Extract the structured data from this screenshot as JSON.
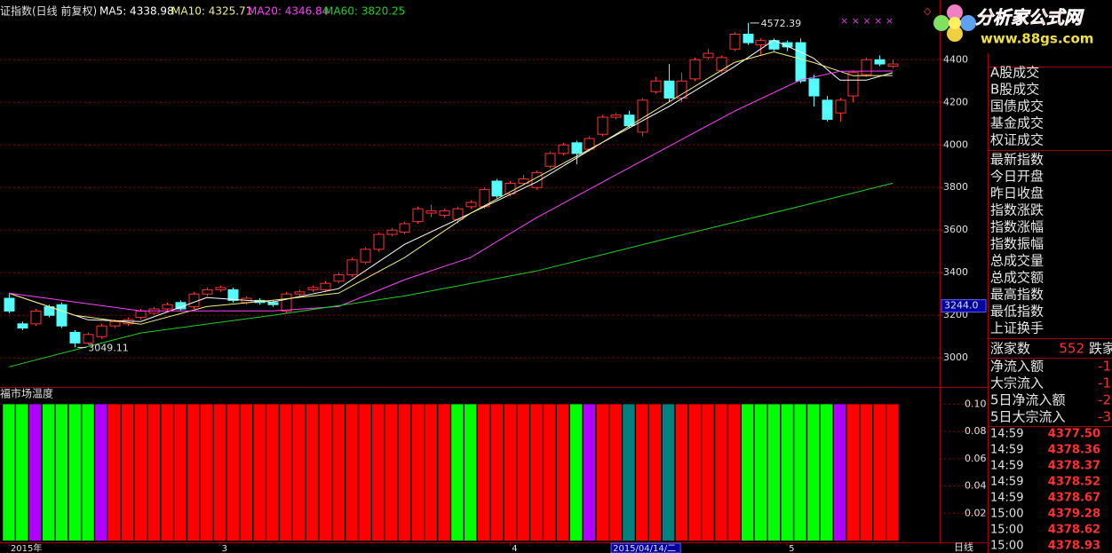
{
  "chart_data": [
    {
      "type": "candlestick",
      "title": "证指数(日线 前复权)",
      "open": [
        3280,
        3160,
        3160,
        3240,
        3250,
        3120,
        3070,
        3100,
        3150,
        3160,
        3190,
        3210,
        3230,
        3260,
        3240,
        3300,
        3320,
        3320,
        3260,
        3270,
        3260,
        3220,
        3300,
        3320,
        3320,
        3360,
        3390,
        3450,
        3510,
        3580,
        3590,
        3640,
        3680,
        3670,
        3650,
        3710,
        3710,
        3830,
        3770,
        3820,
        3800,
        3900,
        3960,
        4010,
        3980,
        4050,
        4130,
        4140,
        4060,
        4250,
        4300,
        4220,
        4310,
        4410,
        4350,
        4450,
        4520,
        4470,
        4490,
        4480,
        4480,
        4310,
        4210,
        4150,
        4230,
        4330,
        4400,
        4370
      ],
      "high": [
        3300,
        3170,
        3230,
        3250,
        3260,
        3130,
        3120,
        3160,
        3180,
        3190,
        3230,
        3240,
        3260,
        3270,
        3310,
        3330,
        3340,
        3330,
        3290,
        3280,
        3270,
        3310,
        3320,
        3340,
        3360,
        3400,
        3470,
        3520,
        3590,
        3610,
        3640,
        3710,
        3720,
        3700,
        3710,
        3740,
        3800,
        3840,
        3830,
        3860,
        3880,
        3970,
        4010,
        4020,
        4040,
        4140,
        4150,
        4160,
        4220,
        4320,
        4380,
        4340,
        4410,
        4450,
        4420,
        4530,
        4572.39,
        4500,
        4500,
        4490,
        4500,
        4330,
        4230,
        4220,
        4350,
        4410,
        4420,
        4400
      ],
      "low": [
        3210,
        3130,
        3150,
        3190,
        3140,
        3049.11,
        3060,
        3090,
        3140,
        3150,
        3180,
        3200,
        3220,
        3220,
        3230,
        3290,
        3310,
        3260,
        3250,
        3250,
        3240,
        3210,
        3290,
        3310,
        3310,
        3350,
        3380,
        3440,
        3500,
        3570,
        3580,
        3630,
        3660,
        3660,
        3630,
        3700,
        3700,
        3750,
        3760,
        3810,
        3790,
        3890,
        3950,
        3910,
        3970,
        4040,
        4120,
        4080,
        4040,
        4240,
        4200,
        4200,
        4300,
        4400,
        4340,
        4440,
        4470,
        4420,
        4440,
        4440,
        4290,
        4180,
        4110,
        4110,
        4200,
        4320,
        4370,
        4360
      ],
      "close": [
        3220,
        3140,
        3220,
        3200,
        3150,
        3070,
        3110,
        3150,
        3170,
        3180,
        3220,
        3230,
        3250,
        3230,
        3300,
        3320,
        3330,
        3270,
        3280,
        3260,
        3250,
        3300,
        3310,
        3330,
        3350,
        3390,
        3460,
        3510,
        3580,
        3600,
        3630,
        3700,
        3690,
        3690,
        3700,
        3730,
        3790,
        3760,
        3820,
        3840,
        3870,
        3960,
        4000,
        3960,
        4030,
        4130,
        4140,
        4090,
        4210,
        4300,
        4220,
        4300,
        4400,
        4430,
        4410,
        4520,
        4480,
        4490,
        4450,
        4460,
        4300,
        4230,
        4120,
        4210,
        4340,
        4400,
        4380,
        4380
      ],
      "up_color": "#ff3232",
      "down_color": "#54fcfc",
      "xlim": [
        -0.67,
        70.57
      ],
      "ylim": [
        2880,
        4597
      ],
      "yticks": [
        3000,
        3200,
        3400,
        3600,
        3800,
        4000,
        4200,
        4400
      ],
      "grid": true,
      "xticks": [
        {
          "value": 0,
          "label": "2015年"
        },
        {
          "value": 16,
          "label": "3"
        },
        {
          "value": 38,
          "label": "4"
        },
        {
          "value": 59,
          "label": "5"
        }
      ],
      "moving_averages": [
        {
          "name": "MA5: 4338.98",
          "color": "#ffffff",
          "x": [
            0,
            3,
            6,
            10,
            15,
            20,
            25,
            30,
            35,
            40,
            45,
            50,
            55,
            58,
            61,
            63,
            65,
            67
          ],
          "values": [
            3304,
            3242,
            3179,
            3171,
            3283,
            3262,
            3325,
            3533,
            3679,
            3825,
            4012,
            4179,
            4367,
            4492,
            4408,
            4304,
            4304,
            4338.98
          ]
        },
        {
          "name": "MA10: 4325.71",
          "color": "#f0f080",
          "x": [
            0,
            5,
            10,
            15,
            20,
            25,
            30,
            35,
            40,
            45,
            50,
            55,
            58,
            61,
            64,
            67
          ],
          "values": [
            3304,
            3200,
            3158,
            3241,
            3271,
            3304,
            3471,
            3679,
            3846,
            4012,
            4200,
            4387,
            4437,
            4387,
            4325,
            4325.71
          ]
        },
        {
          "name": "MA20: 4346.84",
          "color": "#ff40ff",
          "x": [
            0,
            5,
            10,
            15,
            20,
            25,
            30,
            35,
            40,
            45,
            50,
            55,
            60,
            63,
            67
          ],
          "values": [
            3304,
            3262,
            3221,
            3221,
            3221,
            3241,
            3367,
            3471,
            3658,
            3825,
            3992,
            4158,
            4304,
            4346,
            4346.84
          ]
        },
        {
          "name": "MA60: 3820.25",
          "color": "#20d020",
          "x": [
            0,
            10,
            20,
            30,
            40,
            50,
            60,
            67
          ],
          "values": [
            2958,
            3117,
            3200,
            3291,
            3408,
            3562,
            3712,
            3820.25
          ]
        }
      ],
      "annotations": [
        {
          "x": 56,
          "value": 4572.39
        },
        {
          "x": 5,
          "value": 3049.11
        }
      ],
      "signal_marks": "× × × × ×",
      "cursor": {
        "x": {
          "value": 46,
          "label": "2015/04/14/二"
        },
        "y": {
          "value": 3244,
          "label": "3244.0"
        }
      },
      "period_label": "日线"
    },
    {
      "type": "bar",
      "title": "福市场温度",
      "values": [
        0.1,
        0.1,
        0.1,
        0.1,
        0.1,
        0.1,
        0.1,
        0.1,
        0.1,
        0.1,
        0.1,
        0.1,
        0.1,
        0.1,
        0.1,
        0.1,
        0.1,
        0.1,
        0.1,
        0.1,
        0.1,
        0.1,
        0.1,
        0.1,
        0.1,
        0.1,
        0.1,
        0.1,
        0.1,
        0.1,
        0.1,
        0.1,
        0.1,
        0.1,
        0.1,
        0.1,
        0.1,
        0.1,
        0.1,
        0.1,
        0.1,
        0.1,
        0.1,
        0.1,
        0.1,
        0.1,
        0.1,
        0.1,
        0.1,
        0.1,
        0.1,
        0.1,
        0.1,
        0.1,
        0.1,
        0.1,
        0.1,
        0.1,
        0.1,
        0.1,
        0.1,
        0.1,
        0.1,
        0.1,
        0.1,
        0.1,
        0.1,
        0.1
      ],
      "colors": [
        "#00ff00",
        "#00ff00",
        "#b000ff",
        "#00ff00",
        "#00ff00",
        "#00ff00",
        "#00ff00",
        "#b000ff",
        "#ff0000",
        "#ff0000",
        "#ff0000",
        "#ff0000",
        "#ff0000",
        "#ff0000",
        "#ff0000",
        "#ff0000",
        "#ff0000",
        "#ff0000",
        "#ff0000",
        "#ff0000",
        "#ff0000",
        "#ff0000",
        "#ff0000",
        "#ff0000",
        "#ff0000",
        "#ff0000",
        "#ff0000",
        "#ff0000",
        "#ff0000",
        "#ff0000",
        "#ff0000",
        "#ff0000",
        "#ff0000",
        "#ff0000",
        "#00ff00",
        "#00ff00",
        "#ff0000",
        "#ff0000",
        "#ff0000",
        "#ff0000",
        "#ff0000",
        "#ff0000",
        "#ff0000",
        "#00ff00",
        "#b000ff",
        "#ff0000",
        "#ff0000",
        "#008080",
        "#ff0000",
        "#ff0000",
        "#008080",
        "#ff0000",
        "#ff0000",
        "#ff0000",
        "#ff0000",
        "#ff0000",
        "#00ff00",
        "#00ff00",
        "#00ff00",
        "#00ff00",
        "#00ff00",
        "#00ff00",
        "#00ff00",
        "#b000ff",
        "#ff0000",
        "#ff0000",
        "#ff0000",
        "#ff0000"
      ],
      "ylim": [
        0,
        0.11
      ],
      "yticks": [
        {
          "value": 0.1,
          "label": "0.10"
        },
        0.08,
        0.06,
        0.04,
        0.02
      ]
    }
  ],
  "side_panel": {
    "labels": [
      "A股成交",
      "B股成交",
      "国债成交",
      "基金成交",
      "权证成交",
      "最新指数",
      "今日开盘",
      "昨日收盘",
      "指数涨跌",
      "指数涨幅",
      "指数振幅",
      "总成交量",
      "总成交额",
      "最高指数",
      "最低指数",
      "上证换手"
    ],
    "advance": {
      "label": "涨家数",
      "value": 552,
      "tail": "跌家"
    },
    "flows": [
      {
        "label": "净流入额",
        "value": -1
      },
      {
        "label": "大宗流入",
        "value": -1
      },
      {
        "label": "5日净流入额",
        "value": -2
      },
      {
        "label": "5日大宗流入",
        "value": -3
      }
    ],
    "ticks": [
      {
        "time": "14:59",
        "price": "4377.50"
      },
      {
        "time": "14:59",
        "price": "4378.36"
      },
      {
        "time": "14:59",
        "price": "4378.37"
      },
      {
        "time": "14:59",
        "price": "4378.52"
      },
      {
        "time": "14:59",
        "price": "4378.67"
      },
      {
        "time": "15:00",
        "price": "4379.28"
      },
      {
        "time": "15:00",
        "price": "4378.62"
      },
      {
        "time": "15:00",
        "price": "4378.93"
      }
    ]
  },
  "logo": {
    "title": "分析家公式网",
    "url": "www.88gs.com"
  }
}
